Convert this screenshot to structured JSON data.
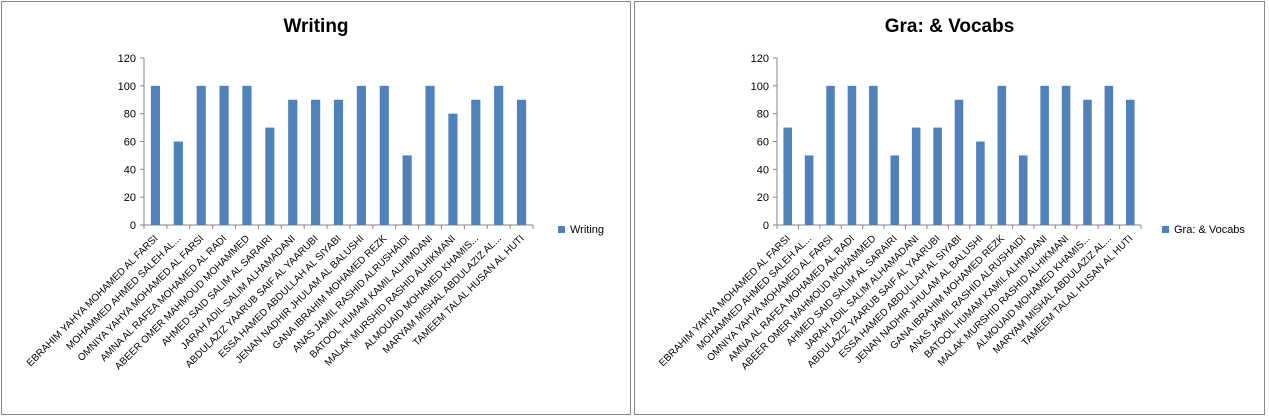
{
  "chart_data": [
    {
      "type": "bar",
      "title": "Writing",
      "ylim": [
        0,
        120
      ],
      "yticks": [
        0,
        20,
        40,
        60,
        80,
        100,
        120
      ],
      "grid": false,
      "legend_position": "right",
      "bar_color": "#4F81BD",
      "categories": [
        "EBRAHIM YAHYA MOHAMED AL FARSI",
        "MOHAMMED AHMED SALEH AL...",
        "OMNIYA YAHYA MOHAMED AL FARSI",
        "AMNA AL RAFEA MOHAMED AL RADI",
        "ABEER OMER MAHMOUD MOHAMMED",
        "AHMED SAID SALIM AL SARAIRI",
        "JARAH ADIL SALIM ALHAMADANI",
        "ABDULAZIZ YAARUB SAIF AL YAARUBI",
        "ESSA HAMED ABDULLAH AL SIYABI",
        "JENAN NADHIR JHULAM AL BALUSHI",
        "GANA IBRAHIM MOHAMED REZK",
        "ANAS   JAMIL RASHID ALRUSHAIDI",
        "BATOOL   HUMAM KAMIL ALHIMDANI",
        "MALAK   MURSHID RASHID ALHIKMANI",
        "ALMOUAID   MOHAMED KHAMIS...",
        "MARYAM   MISHAL ABDULAZIZ AL...",
        "TAMEEM   TALAL HUSAN AL HUTI"
      ],
      "series": [
        {
          "name": "Writing",
          "values": [
            100,
            60,
            100,
            100,
            100,
            70,
            90,
            90,
            90,
            100,
            100,
            50,
            100,
            80,
            90,
            100,
            90
          ]
        }
      ]
    },
    {
      "type": "bar",
      "title": "Gra: & Vocabs",
      "ylim": [
        0,
        120
      ],
      "yticks": [
        0,
        20,
        40,
        60,
        80,
        100,
        120
      ],
      "grid": false,
      "legend_position": "right",
      "bar_color": "#4F81BD",
      "categories": [
        "EBRAHIM YAHYA MOHAMED AL FARSI",
        "MOHAMMED AHMED SALEH AL...",
        "OMNIYA YAHYA MOHAMED AL FARSI",
        "AMNA AL RAFEA MOHAMED AL RADI",
        "ABEER OMER MAHMOUD MOHAMMED",
        "AHMED SAID SALIM AL SARAIRI",
        "JARAH ADIL SALIM ALHAMADANI",
        "ABDULAZIZ YAARUB SAIF AL YAARUBI",
        "ESSA HAMED ABDULLAH AL SIYABI",
        "JENAN NADHIR JHULAM AL BALUSHI",
        "GANA IBRAHIM MOHAMED REZK",
        "ANAS   JAMIL RASHID ALRUSHAIDI",
        "BATOOL   HUMAM KAMIL ALHIMDANI",
        "MALAK   MURSHID RASHID ALHIKMANI",
        "ALMOUAID   MOHAMED KHAMIS...",
        "MARYAM   MISHAL ABDULAZIZ AL...",
        "TAMEEM   TALAL HUSAN AL HUTI"
      ],
      "series": [
        {
          "name": "Gra: & Vocabs",
          "values": [
            70,
            50,
            100,
            100,
            100,
            50,
            70,
            70,
            90,
            60,
            100,
            50,
            100,
            100,
            90,
            100,
            90
          ]
        }
      ]
    }
  ]
}
